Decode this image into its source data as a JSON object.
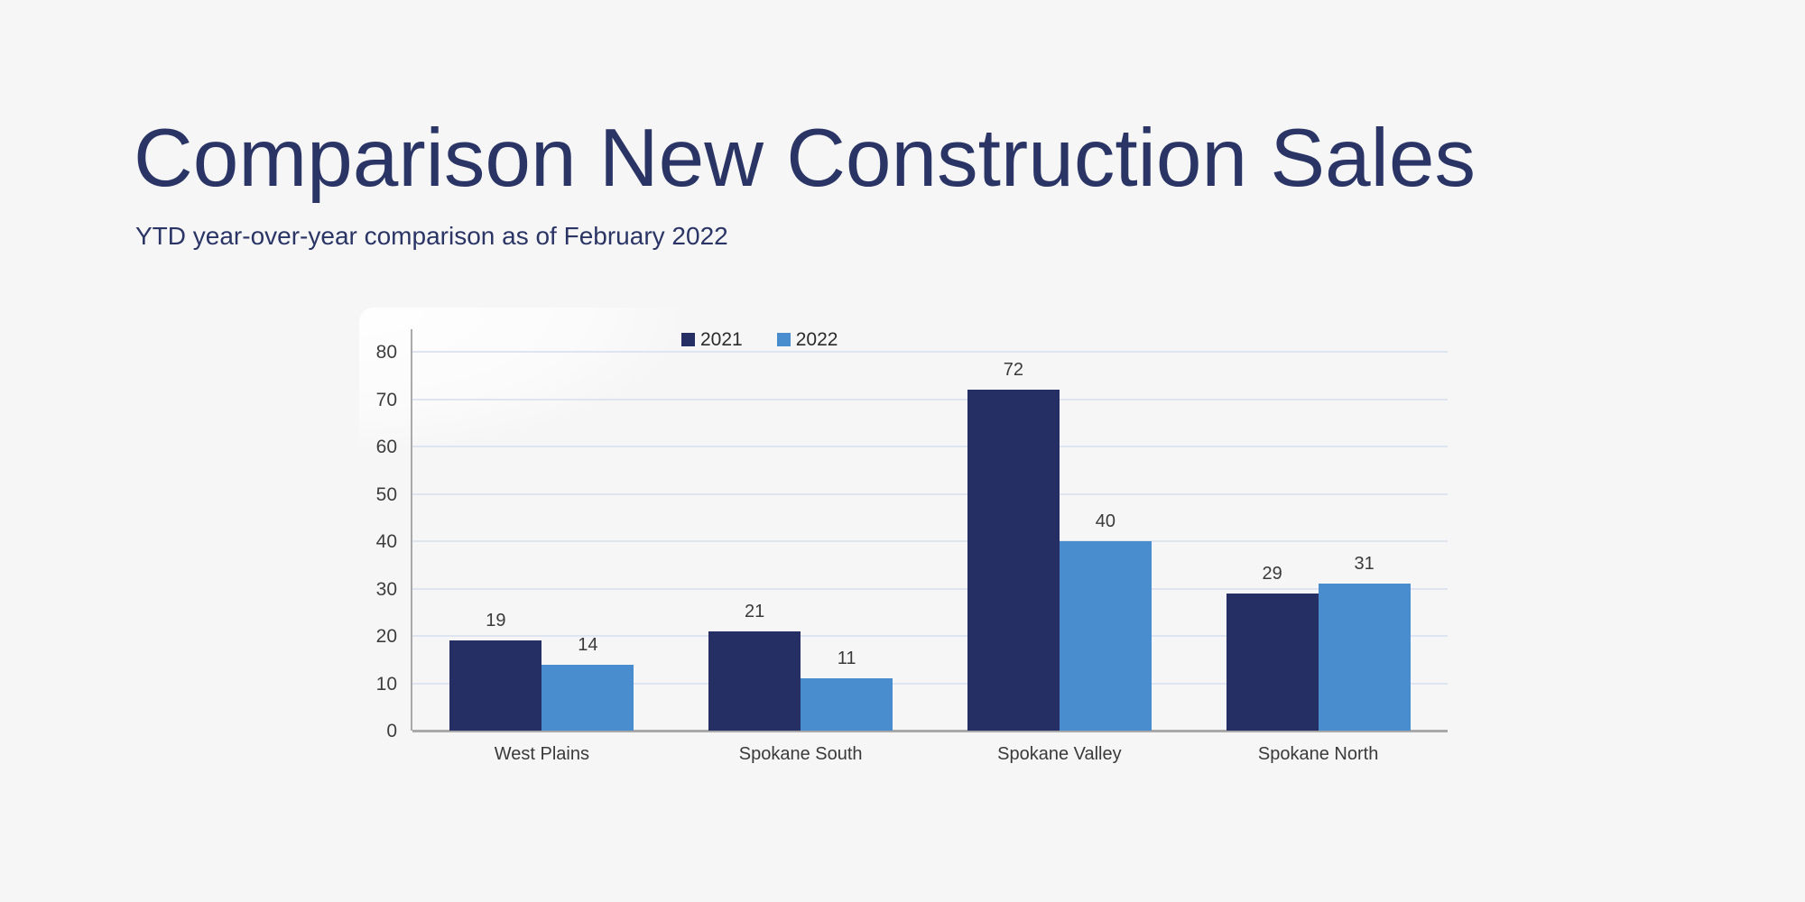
{
  "page": {
    "background": "#f6f6f6"
  },
  "header": {
    "title": "Comparison New Construction Sales",
    "subtitle": "YTD year-over-year comparison as of February 2022"
  },
  "chart_data": {
    "type": "bar",
    "title": "",
    "categories": [
      "West Plains",
      "Spokane South",
      "Spokane Valley",
      "Spokane North"
    ],
    "series": [
      {
        "name": "2021",
        "color": "#262f63",
        "values": [
          19,
          21,
          72,
          29
        ]
      },
      {
        "name": "2022",
        "color": "#4a8dce",
        "values": [
          14,
          11,
          40,
          31
        ]
      }
    ],
    "xlabel": "",
    "ylabel": "",
    "ylim": [
      0,
      80
    ],
    "ytick_step": 10,
    "ytick_labels": [
      "0",
      "10",
      "20",
      "30",
      "40",
      "50",
      "60",
      "70",
      "80"
    ],
    "grid": true,
    "legend_position": "top-center",
    "value_labels": true
  },
  "colors": {
    "title_navy": "#2a3566",
    "series_2021": "#262f63",
    "series_2022": "#4a8dce",
    "gridline": "#dfe5f0",
    "axis": "#a9a9a9",
    "label_text": "#3a3a3a",
    "background": "#f6f6f6"
  }
}
